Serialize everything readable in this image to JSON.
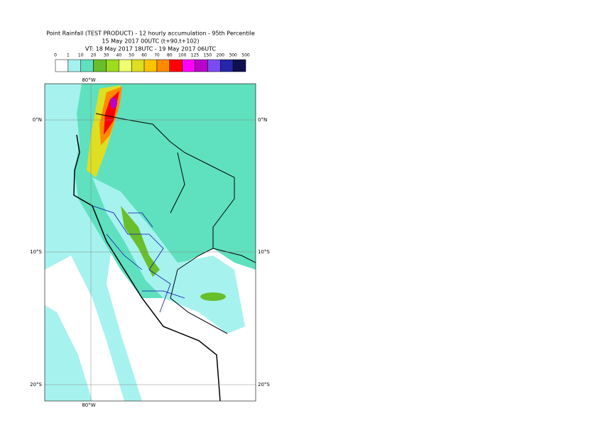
{
  "header": {
    "title": "Point Rainfall (TEST PRODUCT) - 12 hourly accumulation - 95th Percentile",
    "run": "15 May 2017 00UTC (t+90,t+102)",
    "valid": "VT: 18 May 2017 18UTC - 19 May 2017 06UTC"
  },
  "legend": {
    "labels": [
      "0",
      "1",
      "10",
      "20",
      "30",
      "40",
      "50",
      "60",
      "70",
      "80",
      "100",
      "125",
      "150",
      "200",
      "300",
      "500"
    ],
    "colors": [
      "#ffffff",
      "#a6f2ee",
      "#5fe0bf",
      "#69be2c",
      "#9bdc1c",
      "#eeff70",
      "#dede22",
      "#ffc400",
      "#ff8a00",
      "#ff0000",
      "#ff00ff",
      "#b800c8",
      "#7a4cf0",
      "#2626a8",
      "#10104e"
    ]
  },
  "map": {
    "lon_label": "80°W",
    "lat_labels": [
      "0°N",
      "10°S",
      "20°S"
    ]
  }
}
